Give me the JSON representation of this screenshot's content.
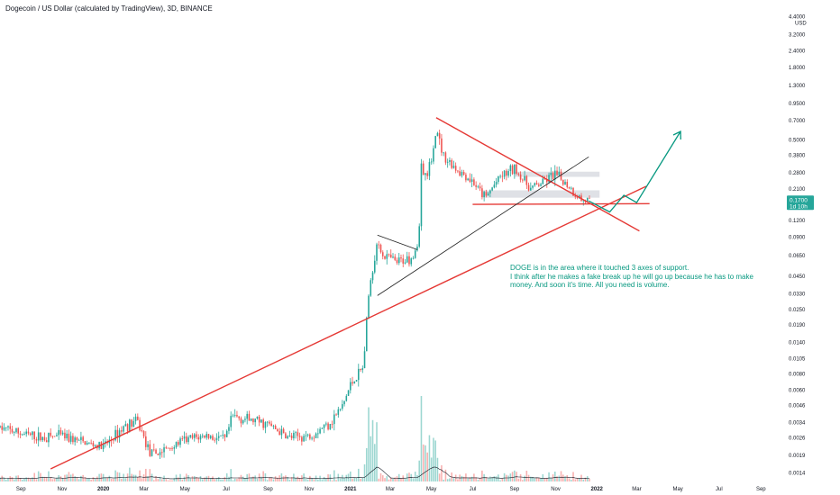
{
  "header": {
    "title": "Dogecoin / US Dollar (calculated by TradingView), 3D, BINANCE"
  },
  "annotation": {
    "lines": [
      "DOGE is in the area where it touched 3 axes of support.",
      "I think after he makes a fake break up he will go up because he has to make",
      "money. And soon it's time. All you need is volume."
    ]
  },
  "colors": {
    "up": "#26a69a",
    "down": "#ef5350",
    "trend_red": "#e53935",
    "trend_black": "#222222",
    "projection": "#089981",
    "support_band": "#d1d4dc",
    "price_box": "#26a69a",
    "text": "#131722"
  },
  "chart_data": {
    "type": "candlestick",
    "symbol": "Dogecoin / US Dollar",
    "timeframe": "3D",
    "exchange": "BINANCE",
    "y_unit": "USD",
    "y_scale": "log",
    "y_ticks": [
      4.4,
      3.2,
      2.4,
      1.8,
      1.3,
      0.95,
      0.7,
      0.5,
      0.38,
      0.28,
      0.21,
      0.12,
      0.09,
      0.065,
      0.045,
      0.033,
      0.025,
      0.019,
      0.014,
      0.0105,
      0.008,
      0.006,
      0.0046,
      0.0034,
      0.0026,
      0.0019,
      0.0014
    ],
    "y_tick_labels": [
      "4.4000",
      "3.2000",
      "2.4000",
      "1.8000",
      "1.3000",
      "0.9500",
      "0.7000",
      "0.5000",
      "0.3800",
      "0.2800",
      "0.2100",
      "0.1200",
      "0.0900",
      "0.0650",
      "0.0450",
      "0.0330",
      "0.0250",
      "0.0190",
      "0.0140",
      "0.0105",
      "0.0080",
      "0.0060",
      "0.0046",
      "0.0034",
      "0.0026",
      "0.0019",
      "0.0014"
    ],
    "x_ticks": [
      "Sep",
      "Nov",
      "2020",
      "Mar",
      "May",
      "Jul",
      "Sep",
      "Nov",
      "2021",
      "Mar",
      "May",
      "Jul",
      "Sep",
      "Nov",
      "2022",
      "Mar",
      "May",
      "Jul",
      "Sep"
    ],
    "x_tick_dates": [
      "2019-09-01",
      "2019-11-01",
      "2020-01-01",
      "2020-03-01",
      "2020-05-01",
      "2020-07-01",
      "2020-09-01",
      "2020-11-01",
      "2021-01-01",
      "2021-03-01",
      "2021-05-01",
      "2021-07-01",
      "2021-09-01",
      "2021-11-01",
      "2022-01-01",
      "2022-03-01",
      "2022-05-01",
      "2022-07-01",
      "2022-09-01"
    ],
    "x_range": [
      "2019-08-01",
      "2022-10-08"
    ],
    "y_range": [
      0.0012,
      5.2
    ],
    "last_price": {
      "value": 0.17,
      "label": "0.1700",
      "countdown": "1d 10h"
    },
    "price_path": [
      [
        "2019-08-01",
        0.0031
      ],
      [
        "2019-09-01",
        0.0028
      ],
      [
        "2019-10-01",
        0.0026
      ],
      [
        "2019-11-01",
        0.0027
      ],
      [
        "2019-12-01",
        0.0024
      ],
      [
        "2020-01-01",
        0.0022
      ],
      [
        "2020-02-01",
        0.0032
      ],
      [
        "2020-02-20",
        0.0035
      ],
      [
        "2020-03-12",
        0.0019
      ],
      [
        "2020-04-01",
        0.0021
      ],
      [
        "2020-05-01",
        0.0025
      ],
      [
        "2020-06-01",
        0.0027
      ],
      [
        "2020-06-30",
        0.0025
      ],
      [
        "2020-07-10",
        0.0038
      ],
      [
        "2020-08-01",
        0.0036
      ],
      [
        "2020-09-01",
        0.0033
      ],
      [
        "2020-10-01",
        0.0026
      ],
      [
        "2020-11-01",
        0.0027
      ],
      [
        "2020-12-01",
        0.0034
      ],
      [
        "2020-12-20",
        0.0045
      ],
      [
        "2021-01-01",
        0.0066
      ],
      [
        "2021-01-20",
        0.009
      ],
      [
        "2021-01-28",
        0.032
      ],
      [
        "2021-02-08",
        0.078
      ],
      [
        "2021-02-20",
        0.065
      ],
      [
        "2021-03-10",
        0.057
      ],
      [
        "2021-04-01",
        0.063
      ],
      [
        "2021-04-12",
        0.082
      ],
      [
        "2021-04-16",
        0.32
      ],
      [
        "2021-04-25",
        0.26
      ],
      [
        "2021-05-08",
        0.57
      ],
      [
        "2021-05-20",
        0.37
      ],
      [
        "2021-06-01",
        0.32
      ],
      [
        "2021-07-01",
        0.24
      ],
      [
        "2021-07-20",
        0.18
      ],
      [
        "2021-08-10",
        0.26
      ],
      [
        "2021-09-01",
        0.3
      ],
      [
        "2021-09-25",
        0.21
      ],
      [
        "2021-10-20",
        0.25
      ],
      [
        "2021-11-01",
        0.27
      ],
      [
        "2021-11-20",
        0.22
      ],
      [
        "2021-12-10",
        0.17
      ],
      [
        "2021-12-20",
        0.17
      ]
    ],
    "support_zones": [
      {
        "from": "2021-07-15",
        "to": "2022-01-05",
        "low": 0.18,
        "high": 0.205
      },
      {
        "from": "2021-09-01",
        "to": "2022-01-05",
        "low": 0.26,
        "high": 0.285
      }
    ],
    "trendlines": [
      {
        "color": "red",
        "from": [
          "2019-10-15",
          0.0015
        ],
        "to": [
          "2022-03-15",
          0.22
        ]
      },
      {
        "color": "red",
        "from": [
          "2021-05-08",
          0.74
        ],
        "to": [
          "2022-03-05",
          0.1
        ]
      },
      {
        "color": "red",
        "from": [
          "2021-07-01",
          0.16
        ],
        "to": [
          "2022-03-20",
          0.162
        ]
      },
      {
        "color": "black",
        "from": [
          "2021-02-10",
          0.032
        ],
        "to": [
          "2021-12-20",
          0.37
        ]
      },
      {
        "color": "black",
        "from": [
          "2021-02-10",
          0.093
        ],
        "to": [
          "2021-04-10",
          0.072
        ]
      }
    ],
    "projection": [
      [
        "2021-12-20",
        0.17
      ],
      [
        "2022-01-20",
        0.14
      ],
      [
        "2022-02-10",
        0.188
      ],
      [
        "2022-03-01",
        0.165
      ],
      [
        "2022-05-05",
        0.58
      ]
    ]
  }
}
